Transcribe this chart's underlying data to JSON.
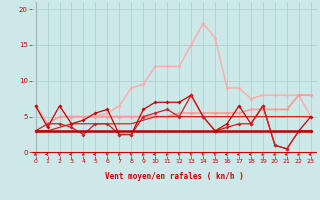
{
  "background_color": "#cce8e8",
  "grid_color": "#aacccc",
  "xlabel": "Vent moyen/en rafales ( kn/h )",
  "xlabel_color": "#cc0000",
  "ytick_color": "#cc0000",
  "xtick_color": "#cc0000",
  "yticks": [
    0,
    5,
    10,
    15,
    20
  ],
  "xticks": [
    0,
    1,
    2,
    3,
    4,
    5,
    6,
    7,
    8,
    9,
    10,
    11,
    12,
    13,
    14,
    15,
    16,
    17,
    18,
    19,
    20,
    21,
    22,
    23
  ],
  "xlim": [
    -0.3,
    23.5
  ],
  "ylim": [
    -0.5,
    21
  ],
  "line_flat3": {
    "x": [
      0,
      1,
      2,
      3,
      4,
      5,
      6,
      7,
      8,
      9,
      10,
      11,
      12,
      13,
      14,
      15,
      16,
      17,
      18,
      19,
      20,
      21,
      22,
      23
    ],
    "y": [
      3,
      3,
      3,
      3,
      3,
      3,
      3,
      3,
      3,
      3,
      3,
      3,
      3,
      3,
      3,
      3,
      3,
      3,
      3,
      3,
      3,
      3,
      3,
      3
    ],
    "color": "#bb0000",
    "lw": 1.8,
    "zorder": 6
  },
  "line_mid": {
    "x": [
      0,
      1,
      2,
      3,
      4,
      5,
      6,
      7,
      8,
      9,
      10,
      11,
      12,
      13,
      14,
      15,
      16,
      17,
      18,
      19,
      20,
      21,
      22,
      23
    ],
    "y": [
      3,
      3,
      3.5,
      4,
      4,
      4,
      4,
      4,
      4,
      4.5,
      5,
      5,
      5,
      5,
      5,
      5,
      5,
      5,
      5,
      5,
      5,
      5,
      5,
      5
    ],
    "color": "#dd2222",
    "lw": 0.9,
    "zorder": 5
  },
  "line_pinkish": {
    "x": [
      0,
      1,
      2,
      3,
      4,
      5,
      6,
      7,
      8,
      9,
      10,
      11,
      12,
      13,
      14,
      15,
      16,
      17,
      18,
      19,
      20,
      21,
      22,
      23
    ],
    "y": [
      6.5,
      4,
      5,
      5,
      5,
      5,
      5,
      5,
      5,
      5,
      5,
      5,
      5.5,
      5.5,
      5.5,
      5.5,
      5.5,
      5.5,
      6,
      6,
      6,
      6,
      8,
      8
    ],
    "color": "#ff9999",
    "lw": 1.2,
    "marker": "D",
    "ms": 2,
    "zorder": 4
  },
  "line_dark_zigzag": {
    "x": [
      0,
      1,
      2,
      3,
      4,
      5,
      6,
      7,
      8,
      9,
      10,
      11,
      12,
      13,
      14,
      15,
      16,
      17,
      18,
      19,
      20,
      21,
      22,
      23
    ],
    "y": [
      6.5,
      3.5,
      6.5,
      4,
      4.5,
      5.5,
      6,
      2.5,
      2.5,
      6,
      7,
      7,
      7,
      8,
      5,
      3,
      4,
      6.5,
      4,
      6.5,
      1,
      0.5,
      3,
      5
    ],
    "color": "#cc0000",
    "lw": 0.9,
    "marker": "D",
    "ms": 2,
    "zorder": 5
  },
  "line_mid_zigzag": {
    "x": [
      0,
      1,
      2,
      3,
      4,
      5,
      6,
      7,
      8,
      9,
      10,
      11,
      12,
      13,
      14,
      15,
      16,
      17,
      18,
      19,
      20,
      21,
      22,
      23
    ],
    "y": [
      3,
      4,
      4,
      3.5,
      2.5,
      4,
      4,
      2.5,
      2.5,
      5,
      5.5,
      6,
      5,
      8,
      5,
      3,
      3.5,
      4,
      4,
      6.5,
      1,
      0.5,
      3,
      3
    ],
    "color": "#cc2222",
    "lw": 0.9,
    "marker": "D",
    "ms": 2,
    "zorder": 5
  },
  "line_light_rafale": {
    "x": [
      0,
      1,
      2,
      3,
      4,
      5,
      6,
      7,
      8,
      9,
      10,
      11,
      12,
      13,
      14,
      15,
      16,
      17,
      18,
      19,
      20,
      21,
      22,
      23
    ],
    "y": [
      null,
      null,
      null,
      null,
      null,
      5,
      5.5,
      6.5,
      9,
      9.5,
      12,
      12,
      12,
      15,
      18,
      16,
      9,
      9,
      7.5,
      8,
      8,
      8,
      8,
      5
    ],
    "color": "#ffaaaa",
    "lw": 1.0,
    "marker": "D",
    "ms": 2,
    "zorder": 3
  },
  "arrows": {
    "x": [
      0,
      1,
      2,
      3,
      4,
      5,
      6,
      7,
      8,
      9,
      10,
      11,
      12,
      13,
      14,
      15,
      16,
      17,
      18,
      19,
      20,
      21,
      22,
      23
    ],
    "angles": [
      225,
      270,
      315,
      270,
      225,
      270,
      315,
      225,
      315,
      225,
      270,
      225,
      315,
      315,
      315,
      315,
      270,
      270,
      270,
      225,
      225,
      270,
      225,
      270
    ],
    "color": "#cc0000"
  }
}
